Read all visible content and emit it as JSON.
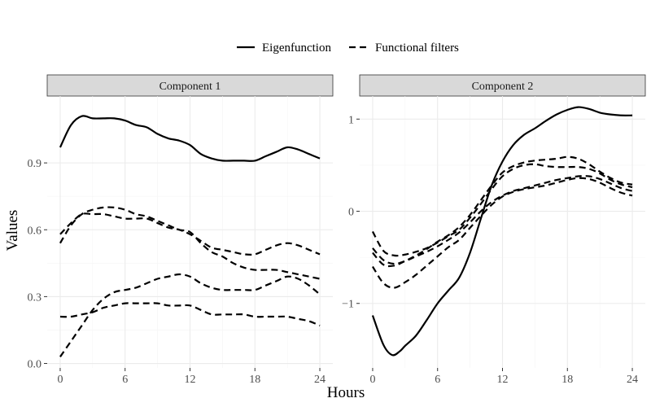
{
  "legend": {
    "items": [
      {
        "label": "Eigenfunction",
        "dash": "solid"
      },
      {
        "label": "Functional filters",
        "dash": "dashed"
      }
    ]
  },
  "axes": {
    "xlabel": "Hours",
    "ylabel": "Values"
  },
  "chart_data": [
    {
      "type": "line",
      "title": "Component 1",
      "xlabel": "Hours",
      "ylabel": "Values",
      "xlim": [
        -1.2,
        25.2
      ],
      "ylim": [
        -0.02,
        1.2
      ],
      "x_ticks": [
        0,
        6,
        12,
        18,
        24
      ],
      "x_tick_labels": [
        "0",
        "6",
        "12",
        "18",
        "24"
      ],
      "y_ticks": [
        0.0,
        0.3,
        0.6,
        0.9
      ],
      "y_tick_labels": [
        "0.0",
        "0.3",
        "0.6",
        "0.9"
      ],
      "grid": true,
      "series": [
        {
          "name": "Eigenfunction",
          "style": "solid",
          "x": [
            0,
            1,
            2,
            3,
            4,
            5,
            6,
            7,
            8,
            9,
            10,
            11,
            12,
            13,
            14,
            15,
            16,
            17,
            18,
            19,
            20,
            21,
            22,
            23,
            24
          ],
          "y": [
            0.97,
            1.07,
            1.11,
            1.1,
            1.1,
            1.1,
            1.09,
            1.07,
            1.06,
            1.03,
            1.01,
            1.0,
            0.98,
            0.94,
            0.92,
            0.91,
            0.91,
            0.91,
            0.91,
            0.93,
            0.95,
            0.97,
            0.96,
            0.94,
            0.92
          ]
        },
        {
          "name": "Functional filters",
          "style": "dashed",
          "x": [
            0,
            1,
            2,
            3,
            4,
            5,
            6,
            7,
            8,
            9,
            10,
            11,
            12,
            13,
            14,
            15,
            16,
            17,
            18,
            19,
            20,
            21,
            22,
            23,
            24
          ],
          "y": [
            0.54,
            0.62,
            0.67,
            0.69,
            0.7,
            0.7,
            0.69,
            0.67,
            0.66,
            0.64,
            0.62,
            0.6,
            0.59,
            0.54,
            0.5,
            0.48,
            0.45,
            0.43,
            0.42,
            0.42,
            0.42,
            0.41,
            0.4,
            0.39,
            0.38
          ]
        },
        {
          "name": "Functional filters",
          "style": "dashed",
          "x": [
            0,
            1,
            2,
            3,
            4,
            5,
            6,
            7,
            8,
            9,
            10,
            11,
            12,
            13,
            14,
            15,
            16,
            17,
            18,
            19,
            20,
            21,
            22,
            23,
            24
          ],
          "y": [
            0.58,
            0.63,
            0.67,
            0.67,
            0.67,
            0.66,
            0.65,
            0.65,
            0.65,
            0.63,
            0.61,
            0.6,
            0.58,
            0.55,
            0.52,
            0.51,
            0.5,
            0.49,
            0.49,
            0.51,
            0.53,
            0.54,
            0.53,
            0.51,
            0.49
          ]
        },
        {
          "name": "Functional filters",
          "style": "dashed",
          "x": [
            0,
            1,
            2,
            3,
            4,
            5,
            6,
            7,
            8,
            9,
            10,
            11,
            12,
            13,
            14,
            15,
            16,
            17,
            18,
            19,
            20,
            21,
            22,
            23,
            24
          ],
          "y": [
            0.03,
            0.1,
            0.17,
            0.24,
            0.29,
            0.32,
            0.33,
            0.34,
            0.36,
            0.38,
            0.39,
            0.4,
            0.39,
            0.36,
            0.34,
            0.33,
            0.33,
            0.33,
            0.33,
            0.35,
            0.37,
            0.39,
            0.38,
            0.35,
            0.31
          ]
        },
        {
          "name": "Functional filters",
          "style": "dashed",
          "x": [
            0,
            1,
            2,
            3,
            4,
            5,
            6,
            7,
            8,
            9,
            10,
            11,
            12,
            13,
            14,
            15,
            16,
            17,
            18,
            19,
            20,
            21,
            22,
            23,
            24
          ],
          "y": [
            0.21,
            0.21,
            0.22,
            0.23,
            0.25,
            0.26,
            0.27,
            0.27,
            0.27,
            0.27,
            0.26,
            0.26,
            0.26,
            0.24,
            0.22,
            0.22,
            0.22,
            0.22,
            0.21,
            0.21,
            0.21,
            0.21,
            0.2,
            0.19,
            0.17
          ]
        }
      ]
    },
    {
      "type": "line",
      "title": "Component 2",
      "xlabel": "Hours",
      "ylabel": "Values",
      "xlim": [
        -1.2,
        25.2
      ],
      "ylim": [
        -1.7,
        1.25
      ],
      "x_ticks": [
        0,
        6,
        12,
        18,
        24
      ],
      "x_tick_labels": [
        "0",
        "6",
        "12",
        "18",
        "24"
      ],
      "y_ticks": [
        -1,
        0,
        1
      ],
      "y_tick_labels": [
        "−1",
        "0",
        "1"
      ],
      "grid": true,
      "series": [
        {
          "name": "Eigenfunction",
          "style": "solid",
          "x": [
            0,
            1,
            1.8,
            2.5,
            3,
            4,
            5,
            6,
            7,
            8,
            9,
            10,
            11,
            12,
            13,
            14,
            15,
            16,
            17,
            18,
            19,
            20,
            21,
            22,
            23,
            24
          ],
          "y": [
            -1.13,
            -1.45,
            -1.56,
            -1.52,
            -1.46,
            -1.35,
            -1.18,
            -1.0,
            -0.86,
            -0.72,
            -0.45,
            -0.08,
            0.28,
            0.54,
            0.72,
            0.83,
            0.9,
            0.98,
            1.05,
            1.1,
            1.13,
            1.11,
            1.07,
            1.05,
            1.04,
            1.04
          ]
        },
        {
          "name": "Functional filters",
          "style": "dashed",
          "x": [
            0,
            1,
            2,
            3,
            4,
            5,
            6,
            7,
            8,
            9,
            10,
            11,
            12,
            13,
            14,
            15,
            16,
            17,
            18,
            19,
            20,
            21,
            22,
            23,
            24
          ],
          "y": [
            -0.22,
            -0.43,
            -0.48,
            -0.47,
            -0.44,
            -0.4,
            -0.34,
            -0.27,
            -0.2,
            -0.07,
            0.08,
            0.24,
            0.38,
            0.46,
            0.5,
            0.51,
            0.49,
            0.48,
            0.48,
            0.48,
            0.46,
            0.41,
            0.34,
            0.29,
            0.26
          ]
        },
        {
          "name": "Functional filters",
          "style": "dashed",
          "x": [
            0,
            1,
            2,
            3,
            4,
            5,
            6,
            7,
            8,
            9,
            10,
            11,
            12,
            13,
            14,
            15,
            16,
            17,
            18,
            19,
            20,
            21,
            22,
            23,
            24
          ],
          "y": [
            -0.45,
            -0.58,
            -0.59,
            -0.54,
            -0.48,
            -0.41,
            -0.33,
            -0.26,
            -0.17,
            -0.04,
            0.12,
            0.28,
            0.42,
            0.49,
            0.53,
            0.55,
            0.56,
            0.57,
            0.59,
            0.57,
            0.51,
            0.43,
            0.36,
            0.31,
            0.29
          ]
        },
        {
          "name": "Functional filters",
          "style": "dashed",
          "x": [
            0,
            1,
            2,
            3,
            4,
            5,
            6,
            7,
            8,
            9,
            10,
            11,
            12,
            13,
            14,
            15,
            16,
            17,
            18,
            19,
            20,
            21,
            22,
            23,
            24
          ],
          "y": [
            -0.6,
            -0.78,
            -0.83,
            -0.77,
            -0.69,
            -0.59,
            -0.49,
            -0.39,
            -0.31,
            -0.18,
            -0.05,
            0.07,
            0.16,
            0.21,
            0.24,
            0.26,
            0.28,
            0.31,
            0.34,
            0.36,
            0.35,
            0.31,
            0.25,
            0.2,
            0.17
          ]
        },
        {
          "name": "Functional filters",
          "style": "dashed",
          "x": [
            0,
            1,
            2,
            3,
            4,
            5,
            6,
            7,
            8,
            9,
            10,
            11,
            12,
            13,
            14,
            15,
            16,
            17,
            18,
            19,
            20,
            21,
            22,
            23,
            24
          ],
          "y": [
            -0.4,
            -0.53,
            -0.57,
            -0.54,
            -0.49,
            -0.44,
            -0.38,
            -0.31,
            -0.23,
            -0.12,
            0.0,
            0.1,
            0.17,
            0.22,
            0.25,
            0.28,
            0.31,
            0.34,
            0.36,
            0.38,
            0.38,
            0.35,
            0.3,
            0.25,
            0.22
          ]
        }
      ]
    }
  ]
}
